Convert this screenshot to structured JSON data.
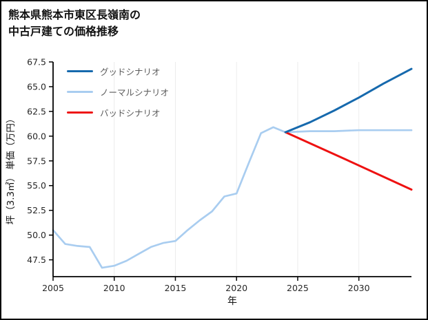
{
  "title": {
    "line1": "熊本県熊本市東区長嶺南の",
    "line2": "中古戸建ての価格推移"
  },
  "chart_data": {
    "type": "line",
    "title": "熊本県熊本市東区長嶺南の中古戸建ての価格推移",
    "xlabel": "年",
    "ylabel": "坪（3.3㎡） 単価（万円）",
    "xlim": [
      2005,
      2034.3
    ],
    "ylim": [
      45.8,
      67.5
    ],
    "xticks": [
      2005,
      2010,
      2015,
      2020,
      2025,
      2030
    ],
    "yticks": [
      47.5,
      50.0,
      52.5,
      55.0,
      57.5,
      60.0,
      62.5,
      65.0,
      67.5
    ],
    "grid": "vertical-light",
    "grid_color": "#ececec",
    "legend_position": "top-left",
    "series": [
      {
        "name": "グッドシナリオ",
        "color": "#1669ad",
        "x": [
          2024,
          2026,
          2028,
          2030,
          2032,
          2034.3
        ],
        "y": [
          60.4,
          61.4,
          62.6,
          63.9,
          65.3,
          66.8
        ]
      },
      {
        "name": "ノーマルシナリオ",
        "color": "#a9cdf0",
        "x": [
          2005,
          2006,
          2007,
          2008,
          2009,
          2010,
          2011,
          2012,
          2013,
          2014,
          2015,
          2016,
          2017,
          2018,
          2019,
          2020,
          2021,
          2022,
          2023,
          2024,
          2026,
          2028,
          2030,
          2032,
          2034.3
        ],
        "y": [
          50.5,
          49.1,
          48.9,
          48.8,
          46.7,
          46.9,
          47.4,
          48.1,
          48.8,
          49.2,
          49.4,
          50.5,
          51.5,
          52.4,
          53.9,
          54.2,
          57.3,
          60.3,
          60.9,
          60.4,
          60.5,
          60.5,
          60.6,
          60.6,
          60.6
        ]
      },
      {
        "name": "バッドシナリオ",
        "color": "#ee1111",
        "x": [
          2024,
          2029,
          2034.3
        ],
        "y": [
          60.4,
          57.6,
          54.6
        ]
      }
    ]
  }
}
